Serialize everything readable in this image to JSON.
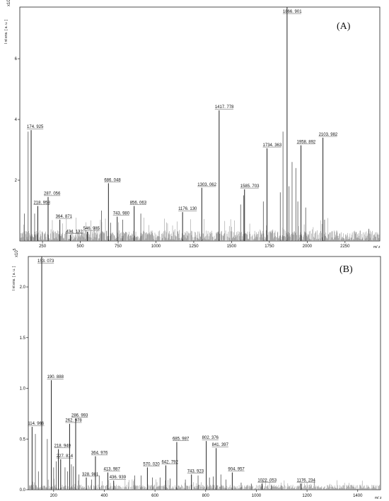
{
  "chart_data": [
    {
      "type": "line",
      "panel_label": "(A)",
      "ylabel": "I nt ens.  [ a. u. ]",
      "xlabel": "m/ z",
      "y_exponent": "x10^4",
      "y_exponent_base": "x10",
      "y_exponent_power": "4",
      "xlim": [
        100,
        2480
      ],
      "ylim": [
        0,
        7.7
      ],
      "x_ticks": [
        250,
        500,
        750,
        1000,
        1250,
        1500,
        1750,
        2000,
        2250
      ],
      "x_tick_labels": [
        "250",
        "500",
        "750",
        "1000",
        "1250",
        "1500",
        "1750",
        "2000",
        "2250"
      ],
      "y_ticks": [
        2,
        4,
        6
      ],
      "y_tick_labels": [
        "2",
        "4",
        "6"
      ],
      "annotated_peaks": [
        {
          "x": 174.925,
          "y": 3.65,
          "label": "174. 925"
        },
        {
          "x": 218.958,
          "y": 1.15,
          "label": "218. 958"
        },
        {
          "x": 287.056,
          "y": 1.45,
          "label": "287. 056"
        },
        {
          "x": 364.871,
          "y": 0.7,
          "label": "364. 871"
        },
        {
          "x": 434.132,
          "y": 0.2,
          "label": "434. 132"
        },
        {
          "x": 546.985,
          "y": 0.3,
          "label": "546. 985"
        },
        {
          "x": 686.048,
          "y": 1.9,
          "label": "686. 048"
        },
        {
          "x": 743.98,
          "y": 0.8,
          "label": "743. 980"
        },
        {
          "x": 856.063,
          "y": 1.15,
          "label": "856. 063"
        },
        {
          "x": 1176.13,
          "y": 0.95,
          "label": "1176. 130"
        },
        {
          "x": 1303.062,
          "y": 1.75,
          "label": "1303. 062"
        },
        {
          "x": 1417.778,
          "y": 4.3,
          "label": "1417. 778"
        },
        {
          "x": 1585.703,
          "y": 1.7,
          "label": "1585. 703"
        },
        {
          "x": 1734.363,
          "y": 3.05,
          "label": "1734. 363"
        },
        {
          "x": 1866.901,
          "y": 7.7,
          "label": "1866. 901"
        },
        {
          "x": 1958.892,
          "y": 3.15,
          "label": "1958. 892"
        },
        {
          "x": 2103.982,
          "y": 3.4,
          "label": "2103. 982"
        }
      ],
      "other_peaks": [
        {
          "x": 155,
          "y": 3.6
        },
        {
          "x": 130,
          "y": 0.9
        },
        {
          "x": 198,
          "y": 0.9
        },
        {
          "x": 640,
          "y": 1.0
        },
        {
          "x": 700,
          "y": 0.6
        },
        {
          "x": 780,
          "y": 0.7
        },
        {
          "x": 900,
          "y": 0.9
        },
        {
          "x": 1580,
          "y": 1.5
        },
        {
          "x": 1560,
          "y": 1.2
        },
        {
          "x": 1710,
          "y": 1.3
        },
        {
          "x": 1840,
          "y": 3.6
        },
        {
          "x": 1822,
          "y": 1.6
        },
        {
          "x": 1880,
          "y": 1.8
        },
        {
          "x": 1900,
          "y": 2.6
        },
        {
          "x": 1925,
          "y": 2.4
        },
        {
          "x": 1938,
          "y": 1.3
        },
        {
          "x": 1990,
          "y": 1.1
        },
        {
          "x": 2115,
          "y": 0.7
        },
        {
          "x": 2408,
          "y": 0.4
        }
      ]
    },
    {
      "type": "line",
      "panel_label": "(B)",
      "ylabel": "I nt ens.  [ a. u. ]",
      "xlabel": "m/ z",
      "y_exponent": "x10^5",
      "y_exponent_base": "x10",
      "y_exponent_power": "5",
      "xlim": [
        100,
        1490
      ],
      "ylim": [
        0,
        2.3
      ],
      "x_ticks": [
        200,
        400,
        600,
        800,
        1000,
        1200,
        1400
      ],
      "x_tick_labels": [
        "200",
        "400",
        "600",
        "800",
        "1000",
        "1200",
        "1400"
      ],
      "y_ticks": [
        0.0,
        0.5,
        1.0,
        1.5,
        2.0
      ],
      "y_tick_labels": [
        "0.0",
        "0.5",
        "1.0",
        "1.5",
        "2.0"
      ],
      "annotated_peaks": [
        {
          "x": 114.966,
          "y": 0.62,
          "label": "114. 966"
        },
        {
          "x": 153.073,
          "y": 2.3,
          "label": "153. 073"
        },
        {
          "x": 190.888,
          "y": 1.08,
          "label": "190. 888"
        },
        {
          "x": 218.94,
          "y": 0.4,
          "label": "218. 940"
        },
        {
          "x": 227.814,
          "y": 0.3,
          "label": "227. 814"
        },
        {
          "x": 262.978,
          "y": 0.65,
          "label": "262. 978"
        },
        {
          "x": 286.993,
          "y": 0.7,
          "label": "286. 993"
        },
        {
          "x": 328.981,
          "y": 0.12,
          "label": "328. 981"
        },
        {
          "x": 364.976,
          "y": 0.33,
          "label": "364. 976"
        },
        {
          "x": 413.987,
          "y": 0.17,
          "label": "413. 987"
        },
        {
          "x": 436.939,
          "y": 0.09,
          "label": "436. 939"
        },
        {
          "x": 570.02,
          "y": 0.22,
          "label": "570. 020"
        },
        {
          "x": 642.792,
          "y": 0.24,
          "label": "642. 792"
        },
        {
          "x": 685.987,
          "y": 0.47,
          "label": "685. 987"
        },
        {
          "x": 743.923,
          "y": 0.15,
          "label": "743. 923"
        },
        {
          "x": 802.376,
          "y": 0.48,
          "label": "802. 376"
        },
        {
          "x": 841.397,
          "y": 0.41,
          "label": "841. 397"
        },
        {
          "x": 904.957,
          "y": 0.17,
          "label": "904. 957"
        },
        {
          "x": 1022.053,
          "y": 0.06,
          "label": "1022. 053"
        },
        {
          "x": 1176.234,
          "y": 0.06,
          "label": "1176. 234"
        }
      ],
      "other_peaks": [
        {
          "x": 128,
          "y": 0.55
        },
        {
          "x": 140,
          "y": 0.18
        },
        {
          "x": 175,
          "y": 0.5
        },
        {
          "x": 200,
          "y": 0.22
        },
        {
          "x": 210,
          "y": 0.28
        },
        {
          "x": 245,
          "y": 0.22
        },
        {
          "x": 255,
          "y": 0.18
        },
        {
          "x": 270,
          "y": 0.25
        },
        {
          "x": 278,
          "y": 0.23
        },
        {
          "x": 300,
          "y": 0.15
        },
        {
          "x": 350,
          "y": 0.1
        },
        {
          "x": 380,
          "y": 0.14
        },
        {
          "x": 520,
          "y": 0.14
        },
        {
          "x": 545,
          "y": 0.14
        },
        {
          "x": 590,
          "y": 0.12
        },
        {
          "x": 620,
          "y": 0.12
        },
        {
          "x": 660,
          "y": 0.11
        },
        {
          "x": 720,
          "y": 0.1
        },
        {
          "x": 770,
          "y": 0.14
        },
        {
          "x": 815,
          "y": 0.12
        },
        {
          "x": 830,
          "y": 0.13
        },
        {
          "x": 860,
          "y": 0.15
        },
        {
          "x": 880,
          "y": 0.1
        },
        {
          "x": 940,
          "y": 0.07
        },
        {
          "x": 980,
          "y": 0.06
        },
        {
          "x": 1060,
          "y": 0.05
        },
        {
          "x": 1100,
          "y": 0.04
        }
      ]
    }
  ]
}
